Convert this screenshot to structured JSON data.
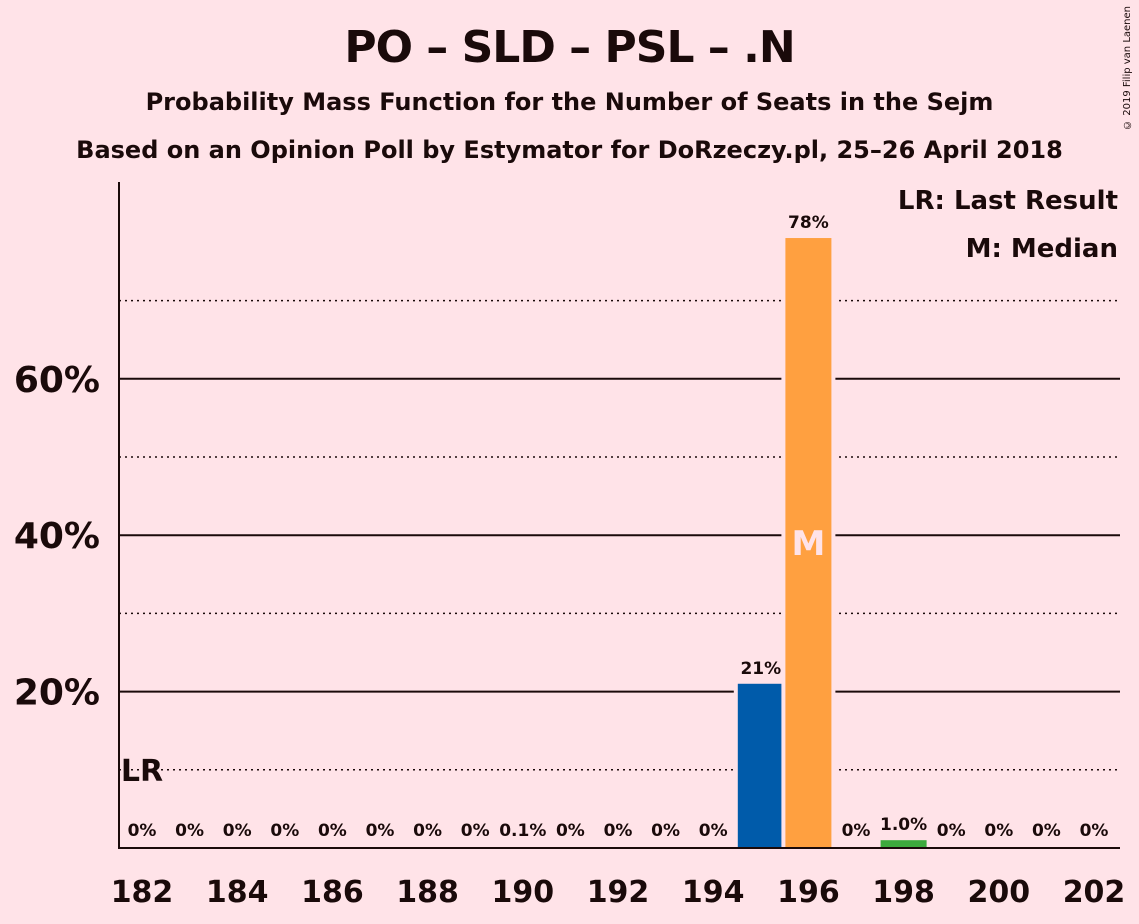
{
  "header": {
    "title": "PO – SLD – PSL – .N",
    "subtitle": "Probability Mass Function for the Number of Seats in the Sejm",
    "subtitle2": "Based on an Opinion Poll by Estymator for DoRzeczy.pl, 25–26 April 2018",
    "copyright": "© 2019 Filip van Laenen"
  },
  "legend": {
    "last_result": "LR: Last Result",
    "median": "M: Median"
  },
  "markers": {
    "last_result_label": "LR",
    "last_result_seat": 182,
    "median_label": "M",
    "median_seat": 196
  },
  "colors": {
    "background": "#FFE3E8",
    "blue": "#005BAA",
    "orange": "#FFA040",
    "green": "#3DAA3D",
    "text": "#1a0a0a"
  },
  "chart_data": {
    "type": "bar",
    "xlim": [
      182,
      202
    ],
    "ylim": [
      0,
      85
    ],
    "y_solid_gridlines": [
      20,
      40,
      60
    ],
    "y_dotted_gridlines": [
      10,
      30,
      50,
      70
    ],
    "y_tick_labels": [
      "20%",
      "40%",
      "60%"
    ],
    "y_tick_values": [
      20,
      40,
      60
    ],
    "x_tick_values": [
      182,
      184,
      186,
      188,
      190,
      192,
      194,
      196,
      198,
      200,
      202
    ],
    "x_tick_labels": [
      "182",
      "184",
      "186",
      "188",
      "190",
      "192",
      "194",
      "196",
      "198",
      "200",
      "202"
    ],
    "bars": [
      {
        "seats": 182,
        "value": 0,
        "label": "0%",
        "color": ""
      },
      {
        "seats": 183,
        "value": 0,
        "label": "0%",
        "color": ""
      },
      {
        "seats": 184,
        "value": 0,
        "label": "0%",
        "color": ""
      },
      {
        "seats": 185,
        "value": 0,
        "label": "0%",
        "color": ""
      },
      {
        "seats": 186,
        "value": 0,
        "label": "0%",
        "color": ""
      },
      {
        "seats": 187,
        "value": 0,
        "label": "0%",
        "color": ""
      },
      {
        "seats": 188,
        "value": 0,
        "label": "0%",
        "color": ""
      },
      {
        "seats": 189,
        "value": 0,
        "label": "0%",
        "color": ""
      },
      {
        "seats": 190,
        "value": 0.1,
        "label": "0.1%",
        "color": ""
      },
      {
        "seats": 191,
        "value": 0,
        "label": "0%",
        "color": ""
      },
      {
        "seats": 192,
        "value": 0,
        "label": "0%",
        "color": ""
      },
      {
        "seats": 193,
        "value": 0,
        "label": "0%",
        "color": ""
      },
      {
        "seats": 194,
        "value": 0,
        "label": "0%",
        "color": ""
      },
      {
        "seats": 195,
        "value": 21,
        "label": "21%",
        "color": "#005BAA"
      },
      {
        "seats": 196,
        "value": 78,
        "label": "78%",
        "color": "#FFA040"
      },
      {
        "seats": 197,
        "value": 0,
        "label": "0%",
        "color": ""
      },
      {
        "seats": 198,
        "value": 1.0,
        "label": "1.0%",
        "color": "#3DAA3D"
      },
      {
        "seats": 199,
        "value": 0,
        "label": "0%",
        "color": ""
      },
      {
        "seats": 200,
        "value": 0,
        "label": "0%",
        "color": ""
      },
      {
        "seats": 201,
        "value": 0,
        "label": "0%",
        "color": ""
      },
      {
        "seats": 202,
        "value": 0,
        "label": "0%",
        "color": ""
      }
    ]
  }
}
